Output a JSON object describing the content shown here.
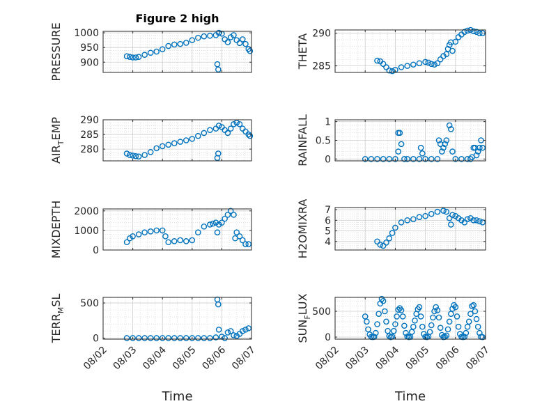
{
  "figure": {
    "title": "Figure 2 high"
  },
  "colors": {
    "marker": "#0072BD",
    "axis": "#262626",
    "grid": "#d9d9d9",
    "background": "#ffffff"
  },
  "chart_data": [
    {
      "type": "scatter",
      "ylabel": "PRESSURE",
      "xlabel": "",
      "title": "Figure 2 high",
      "xlim": [
        "08/02",
        "08/07"
      ],
      "ylim": [
        865,
        1005
      ],
      "yticks": [
        "900",
        "950",
        "1000"
      ],
      "xticks": [
        "08/02",
        "08/03",
        "08/04",
        "08/05",
        "08/06",
        "08/07"
      ],
      "grid": true,
      "x": [
        2.8,
        2.9,
        3.0,
        3.1,
        3.2,
        3.4,
        3.6,
        3.8,
        4.0,
        4.2,
        4.4,
        4.6,
        4.8,
        5.0,
        5.2,
        5.4,
        5.6,
        5.8,
        5.85,
        5.88,
        5.9,
        6.0,
        6.1,
        6.2,
        6.3,
        6.4,
        6.5,
        6.6,
        6.7,
        6.8,
        6.9,
        6.95
      ],
      "y": [
        920,
        918,
        916,
        916,
        918,
        925,
        932,
        936,
        944,
        955,
        960,
        962,
        966,
        975,
        983,
        988,
        990,
        992,
        893,
        875,
        1000,
        997,
        978,
        968,
        985,
        992,
        975,
        965,
        978,
        962,
        945,
        938
      ]
    },
    {
      "type": "scatter",
      "ylabel": "THETA",
      "xlabel": "",
      "xlim": [
        "08/02",
        "08/07"
      ],
      "ylim": [
        284,
        290.5
      ],
      "yticks": [
        "285",
        "290"
      ],
      "xticks": [
        "08/02",
        "08/03",
        "08/04",
        "08/05",
        "08/06",
        "08/07"
      ],
      "grid": true,
      "x": [
        3.4,
        3.5,
        3.6,
        3.7,
        3.8,
        3.9,
        4.0,
        4.2,
        4.4,
        4.6,
        4.8,
        5.0,
        5.1,
        5.2,
        5.3,
        5.4,
        5.5,
        5.6,
        5.7,
        5.75,
        5.8,
        5.85,
        5.9,
        6.0,
        6.1,
        6.2,
        6.3,
        6.4,
        6.5,
        6.6,
        6.7,
        6.8,
        6.9
      ],
      "y": [
        285.8,
        285.7,
        285.3,
        284.8,
        284.3,
        284.2,
        284.4,
        284.8,
        285.0,
        285.2,
        285.4,
        285.6,
        285.5,
        285.3,
        285.2,
        285.4,
        286.0,
        286.5,
        286.8,
        287.6,
        288.2,
        288.6,
        287.3,
        288.7,
        289.4,
        289.8,
        290.2,
        290.4,
        290.5,
        290.3,
        290.2,
        290.0,
        290.0
      ]
    },
    {
      "type": "scatter",
      "ylabel": "AIR_TEMP",
      "ylabel_main": "AIR",
      "ylabel_sub": "T",
      "ylabel_rest": "EMP",
      "xlabel": "",
      "xlim": [
        "08/02",
        "08/07"
      ],
      "ylim": [
        276,
        290
      ],
      "yticks": [
        "280",
        "285",
        "290"
      ],
      "xticks": [
        "08/02",
        "08/03",
        "08/04",
        "08/05",
        "08/06",
        "08/07"
      ],
      "grid": true,
      "x": [
        2.8,
        2.9,
        3.0,
        3.1,
        3.2,
        3.4,
        3.6,
        3.8,
        4.0,
        4.2,
        4.4,
        4.6,
        4.8,
        5.0,
        5.2,
        5.4,
        5.6,
        5.8,
        5.85,
        5.88,
        5.9,
        6.0,
        6.1,
        6.2,
        6.3,
        6.4,
        6.5,
        6.6,
        6.7,
        6.8,
        6.9,
        6.95
      ],
      "y": [
        278.5,
        278.0,
        277.8,
        277.6,
        277.5,
        278.0,
        279.0,
        280.3,
        281.0,
        281.5,
        282.0,
        282.5,
        283.0,
        283.5,
        284.5,
        285.5,
        286.5,
        287.0,
        277.0,
        278.5,
        288.0,
        287.5,
        286.5,
        285.5,
        287.0,
        288.5,
        289.0,
        288.5,
        287.0,
        286.0,
        285.0,
        284.5
      ]
    },
    {
      "type": "scatter",
      "ylabel": "RAINFALL",
      "xlabel": "",
      "xlim": [
        "08/02",
        "08/07"
      ],
      "ylim": [
        -0.05,
        1.05
      ],
      "yticks": [
        "0",
        "0.5",
        "1"
      ],
      "xticks": [
        "08/02",
        "08/03",
        "08/04",
        "08/05",
        "08/06",
        "08/07"
      ],
      "grid": true,
      "x": [
        3.0,
        3.2,
        3.4,
        3.6,
        3.8,
        4.0,
        4.1,
        4.1,
        4.15,
        4.2,
        4.3,
        4.4,
        4.6,
        4.8,
        4.85,
        4.9,
        5.0,
        5.2,
        5.4,
        5.45,
        5.5,
        5.55,
        5.6,
        5.65,
        5.7,
        5.8,
        5.85,
        5.9,
        6.0,
        6.2,
        6.4,
        6.5,
        6.55,
        6.6,
        6.65,
        6.7,
        6.75,
        6.8,
        6.85,
        6.9
      ],
      "y": [
        0,
        0,
        0,
        0,
        0,
        0,
        0.2,
        0.7,
        0.7,
        0.4,
        0,
        0,
        0,
        0,
        0.3,
        0.15,
        0,
        0,
        0,
        0.5,
        0.4,
        0.2,
        0.3,
        0.4,
        0.5,
        0.9,
        0.8,
        0.2,
        0,
        0,
        0,
        0,
        0.05,
        0.3,
        0.3,
        0.1,
        0.2,
        0.3,
        0.5,
        0.3
      ]
    },
    {
      "type": "scatter",
      "ylabel": "MIXDEPTH",
      "xlabel": "",
      "xlim": [
        "08/02",
        "08/07"
      ],
      "ylim": [
        0,
        2100
      ],
      "yticks": [
        "0",
        "1000",
        "2000"
      ],
      "xticks": [
        "08/02",
        "08/03",
        "08/04",
        "08/05",
        "08/06",
        "08/07"
      ],
      "grid": true,
      "x": [
        2.8,
        2.9,
        3.0,
        3.2,
        3.4,
        3.6,
        3.8,
        4.0,
        4.1,
        4.2,
        4.4,
        4.6,
        4.8,
        5.0,
        5.2,
        5.4,
        5.6,
        5.7,
        5.8,
        5.85,
        5.9,
        6.0,
        6.1,
        6.2,
        6.3,
        6.4,
        6.45,
        6.5,
        6.6,
        6.7,
        6.8,
        6.9
      ],
      "y": [
        400,
        600,
        700,
        800,
        900,
        950,
        1000,
        1000,
        700,
        400,
        450,
        500,
        450,
        500,
        900,
        1200,
        1300,
        1350,
        1400,
        900,
        1300,
        1400,
        1600,
        1800,
        2000,
        1800,
        600,
        900,
        700,
        500,
        300,
        300
      ]
    },
    {
      "type": "scatter",
      "ylabel": "H2OMIXRA",
      "xlabel": "",
      "xlim": [
        "08/02",
        "08/07"
      ],
      "ylim": [
        3.2,
        7.2
      ],
      "yticks": [
        "4",
        "5",
        "6",
        "7"
      ],
      "xticks": [
        "08/02",
        "08/03",
        "08/04",
        "08/05",
        "08/06",
        "08/07"
      ],
      "grid": true,
      "x": [
        3.4,
        3.5,
        3.6,
        3.7,
        3.8,
        3.9,
        4.0,
        4.2,
        4.4,
        4.6,
        4.8,
        5.0,
        5.2,
        5.4,
        5.6,
        5.7,
        5.8,
        5.85,
        5.9,
        6.0,
        6.1,
        6.2,
        6.3,
        6.4,
        6.5,
        6.6,
        6.7,
        6.8,
        6.9
      ],
      "y": [
        4.0,
        3.7,
        3.6,
        3.9,
        4.3,
        4.8,
        5.3,
        5.8,
        6.0,
        6.1,
        6.3,
        6.4,
        6.6,
        6.8,
        6.9,
        6.8,
        6.2,
        5.6,
        6.5,
        6.4,
        6.2,
        6.0,
        5.8,
        6.1,
        6.2,
        6.0,
        6.0,
        5.9,
        5.8
      ]
    },
    {
      "type": "scatter",
      "ylabel": "TERR_MSL",
      "ylabel_main": "TERR",
      "ylabel_sub": "M",
      "ylabel_rest": "SL",
      "xlabel": "Time",
      "xlim": [
        "08/02",
        "08/07"
      ],
      "ylim": [
        -15,
        580
      ],
      "yticks": [
        "0",
        "500"
      ],
      "xticks": [
        "08/02",
        "08/03",
        "08/04",
        "08/05",
        "08/06",
        "08/07"
      ],
      "grid": true,
      "x": [
        2.8,
        3.0,
        3.2,
        3.4,
        3.6,
        3.8,
        4.0,
        4.2,
        4.4,
        4.6,
        4.8,
        5.0,
        5.2,
        5.4,
        5.6,
        5.8,
        5.85,
        5.88,
        5.9,
        6.0,
        6.1,
        6.2,
        6.3,
        6.4,
        6.5,
        6.6,
        6.7,
        6.8,
        6.9
      ],
      "y": [
        0,
        0,
        0,
        0,
        0,
        0,
        0,
        0,
        0,
        0,
        0,
        0,
        0,
        0,
        0,
        10,
        550,
        480,
        120,
        20,
        0,
        80,
        100,
        40,
        30,
        60,
        100,
        120,
        140
      ]
    },
    {
      "type": "scatter",
      "ylabel": "SUN_FLUX",
      "ylabel_main": "SUN",
      "ylabel_sub": "F",
      "ylabel_rest": "LUX",
      "xlabel": "Time",
      "xlim": [
        "08/02",
        "08/07"
      ],
      "ylim": [
        -40,
        770
      ],
      "yticks": [
        "0",
        "500"
      ],
      "xticks": [
        "08/02",
        "08/03",
        "08/04",
        "08/05",
        "08/06",
        "08/07"
      ],
      "grid": true,
      "x": [
        3.0,
        3.05,
        3.1,
        3.15,
        3.2,
        3.25,
        3.3,
        3.35,
        3.4,
        3.45,
        3.5,
        3.55,
        3.6,
        3.65,
        3.7,
        3.75,
        3.8,
        3.85,
        3.9,
        3.95,
        4.0,
        4.05,
        4.1,
        4.15,
        4.2,
        4.25,
        4.3,
        4.35,
        4.4,
        4.45,
        4.5,
        4.55,
        4.6,
        4.65,
        4.7,
        4.75,
        4.8,
        4.85,
        4.9,
        4.95,
        5.0,
        5.05,
        5.1,
        5.15,
        5.2,
        5.25,
        5.3,
        5.35,
        5.4,
        5.45,
        5.5,
        5.55,
        5.6,
        5.65,
        5.7,
        5.75,
        5.8,
        5.85,
        5.9,
        5.95,
        6.0,
        6.05,
        6.1,
        6.15,
        6.2,
        6.25,
        6.3,
        6.35,
        6.4,
        6.45,
        6.5,
        6.55,
        6.6,
        6.65,
        6.7,
        6.75,
        6.8,
        6.85,
        6.9
      ],
      "y": [
        400,
        300,
        150,
        50,
        5,
        0,
        5,
        80,
        250,
        450,
        650,
        740,
        700,
        500,
        300,
        120,
        20,
        0,
        10,
        120,
        250,
        400,
        530,
        560,
        520,
        400,
        220,
        80,
        10,
        0,
        5,
        100,
        200,
        320,
        450,
        540,
        580,
        400,
        200,
        60,
        5,
        0,
        10,
        100,
        230,
        380,
        500,
        580,
        520,
        380,
        180,
        40,
        0,
        5,
        30,
        150,
        300,
        450,
        550,
        620,
        580,
        400,
        200,
        60,
        5,
        0,
        5,
        80,
        200,
        300,
        450,
        600,
        620,
        500,
        350,
        200,
        80,
        5,
        0
      ]
    }
  ]
}
